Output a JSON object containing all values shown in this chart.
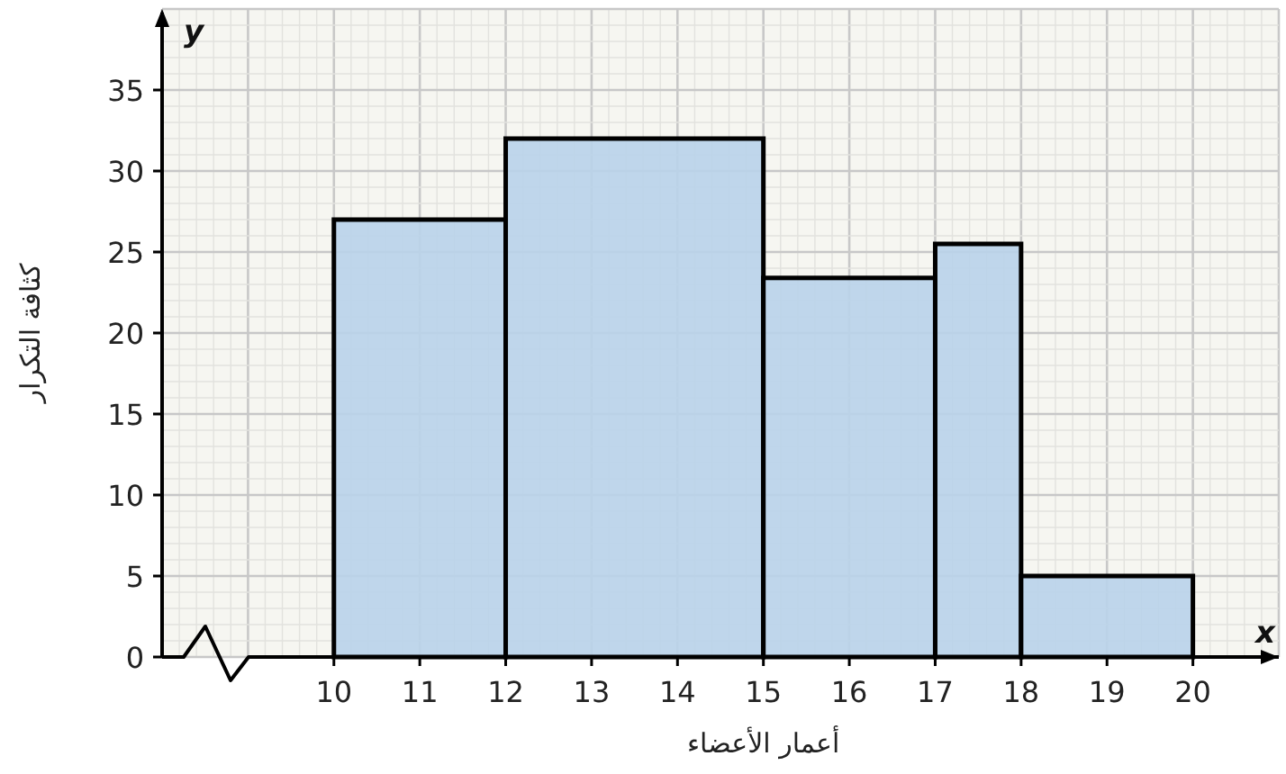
{
  "chart_data": {
    "type": "histogram",
    "xlabel": "أعمار الأعضاء",
    "ylabel": "كثافة التكرار",
    "annotations": [
      "y",
      "x"
    ],
    "bins": [
      10,
      12,
      15,
      17,
      18,
      20
    ],
    "values": [
      27,
      32,
      23.4,
      25.5,
      5
    ],
    "color": "#b9d3ea",
    "xlim": [
      8,
      21
    ],
    "ylim": [
      0,
      40
    ],
    "xticks": [
      10,
      11,
      12,
      13,
      14,
      15,
      16,
      17,
      18,
      19,
      20
    ],
    "yticks": [
      0,
      5,
      10,
      15,
      20,
      25,
      30,
      35
    ],
    "grid": true
  }
}
